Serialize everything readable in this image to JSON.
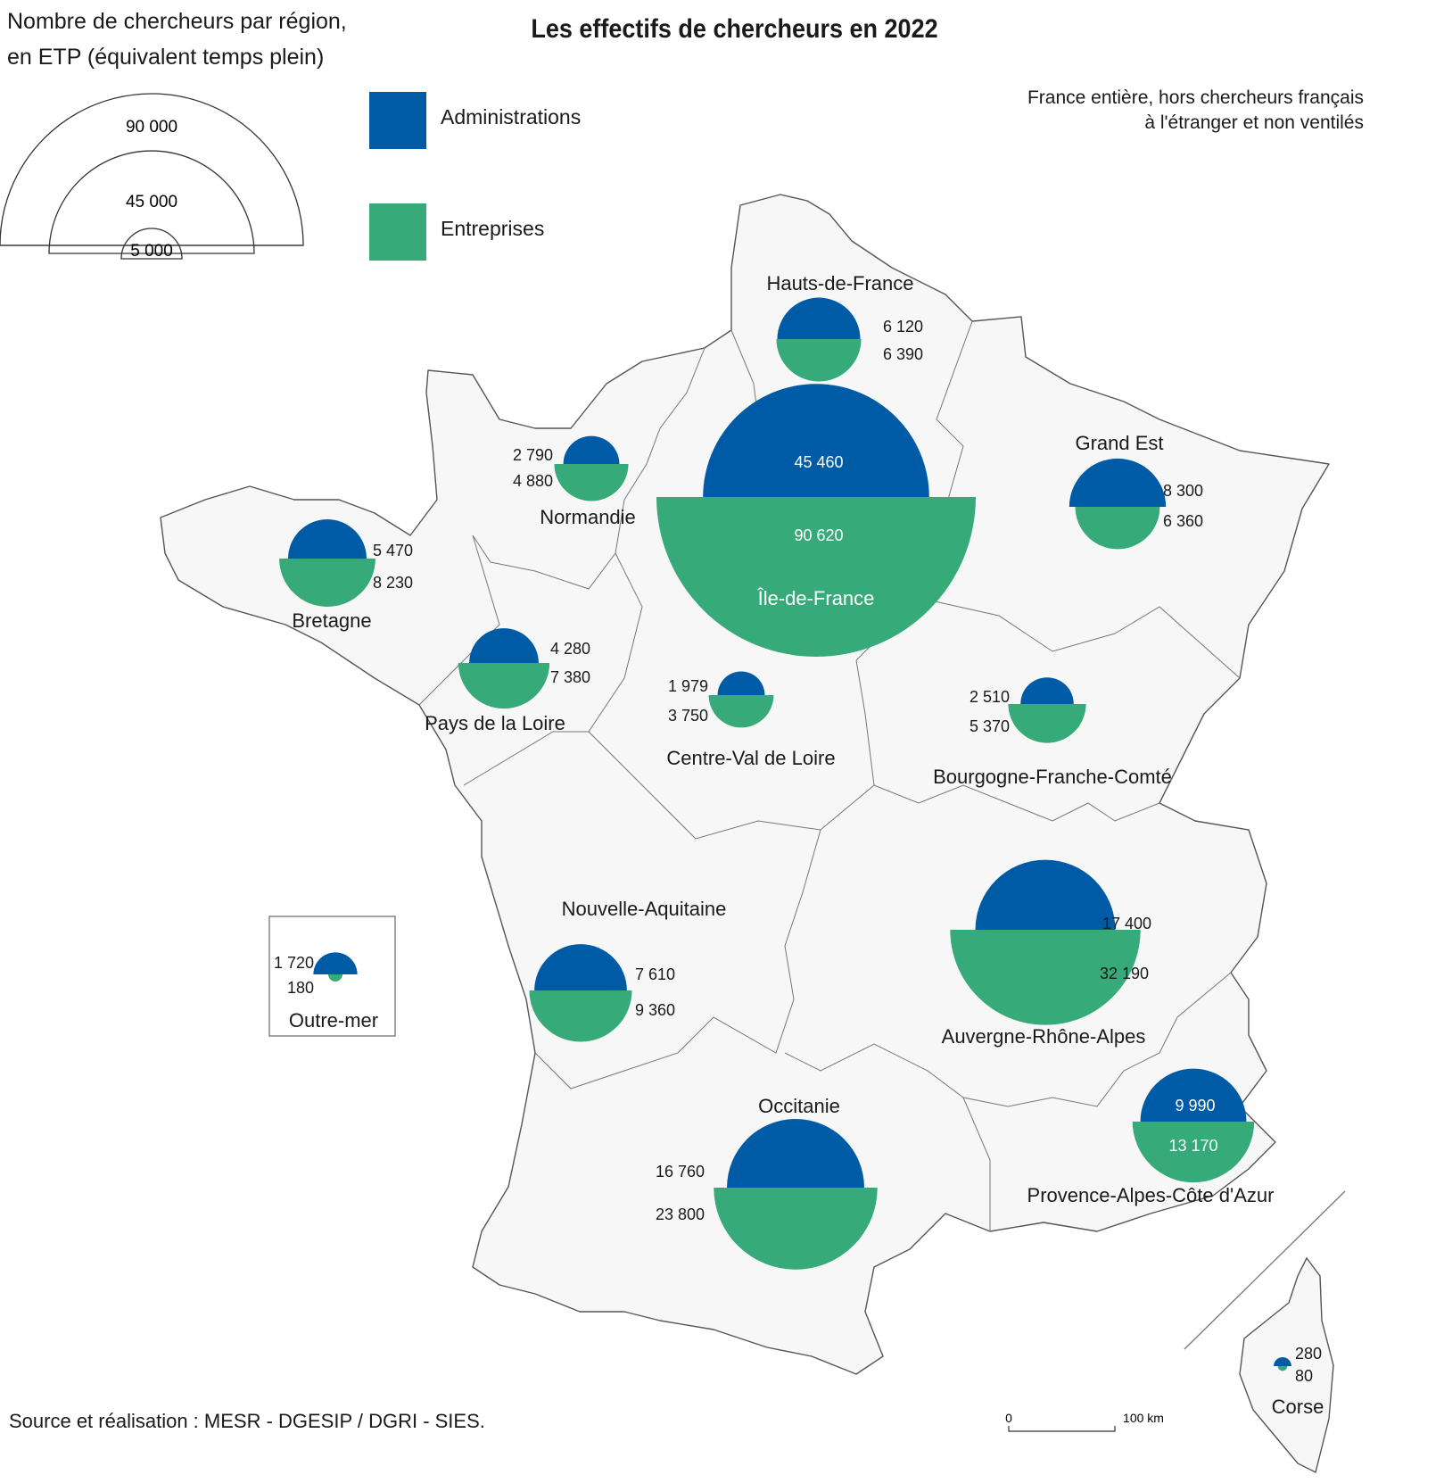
{
  "title": "Les effectifs de chercheurs en 2022",
  "legend": {
    "title_line1": "Nombre de chercheurs par région,",
    "title_line2": "en ETP (équivalent temps plein)",
    "size_labels": [
      "90 000",
      "45 000",
      "5 000"
    ],
    "categories": [
      {
        "label": "Administrations",
        "color": "#005BA6"
      },
      {
        "label": "Entreprises",
        "color": "#36AA78"
      }
    ]
  },
  "note_line1": "France entière, hors chercheurs français",
  "note_line2": "à l'étranger et non ventilés",
  "source": "Source et réalisation : MESR - DGESIP / DGRI - SIES.",
  "scale_bar": {
    "start": "0",
    "end": "100 km"
  },
  "map_data": {
    "regions": [
      {
        "name": "Île-de-France",
        "administrations": 45460,
        "entreprises": 90620,
        "admin_label": "45 460",
        "entr_label": "90 620"
      },
      {
        "name": "Hauts-de-France",
        "administrations": 6120,
        "entreprises": 6390,
        "admin_label": "6 120",
        "entr_label": "6 390"
      },
      {
        "name": "Normandie",
        "administrations": 2790,
        "entreprises": 4880,
        "admin_label": "2 790",
        "entr_label": "4 880"
      },
      {
        "name": "Grand Est",
        "administrations": 8300,
        "entreprises": 6360,
        "admin_label": "8 300",
        "entr_label": "6 360"
      },
      {
        "name": "Bretagne",
        "administrations": 5470,
        "entreprises": 8230,
        "admin_label": "5 470",
        "entr_label": "8 230"
      },
      {
        "name": "Pays de la Loire",
        "administrations": 4280,
        "entreprises": 7380,
        "admin_label": "4 280",
        "entr_label": "7 380"
      },
      {
        "name": "Centre-Val de Loire",
        "administrations": 1979,
        "entreprises": 3750,
        "admin_label": "1 979",
        "entr_label": "3 750"
      },
      {
        "name": "Bourgogne-Franche-Comté",
        "administrations": 2510,
        "entreprises": 5370,
        "admin_label": "2 510",
        "entr_label": "5 370"
      },
      {
        "name": "Nouvelle-Aquitaine",
        "administrations": 7610,
        "entreprises": 9360,
        "admin_label": "7 610",
        "entr_label": "9 360"
      },
      {
        "name": "Auvergne-Rhône-Alpes",
        "administrations": 17400,
        "entreprises": 32190,
        "admin_label": "17 400",
        "entr_label": "32 190"
      },
      {
        "name": "Occitanie",
        "administrations": 16760,
        "entreprises": 23800,
        "admin_label": "16 760",
        "entr_label": "23 800"
      },
      {
        "name": "Provence-Alpes-Côte d'Azur",
        "administrations": 9990,
        "entreprises": 13170,
        "admin_label": "9 990",
        "entr_label": "13 170"
      },
      {
        "name": "Corse",
        "administrations": 280,
        "entreprises": 80,
        "admin_label": "280",
        "entr_label": "80"
      },
      {
        "name": "Outre-mer",
        "administrations": 1720,
        "entreprises": 180,
        "admin_label": "1 720",
        "entr_label": "180"
      }
    ]
  }
}
